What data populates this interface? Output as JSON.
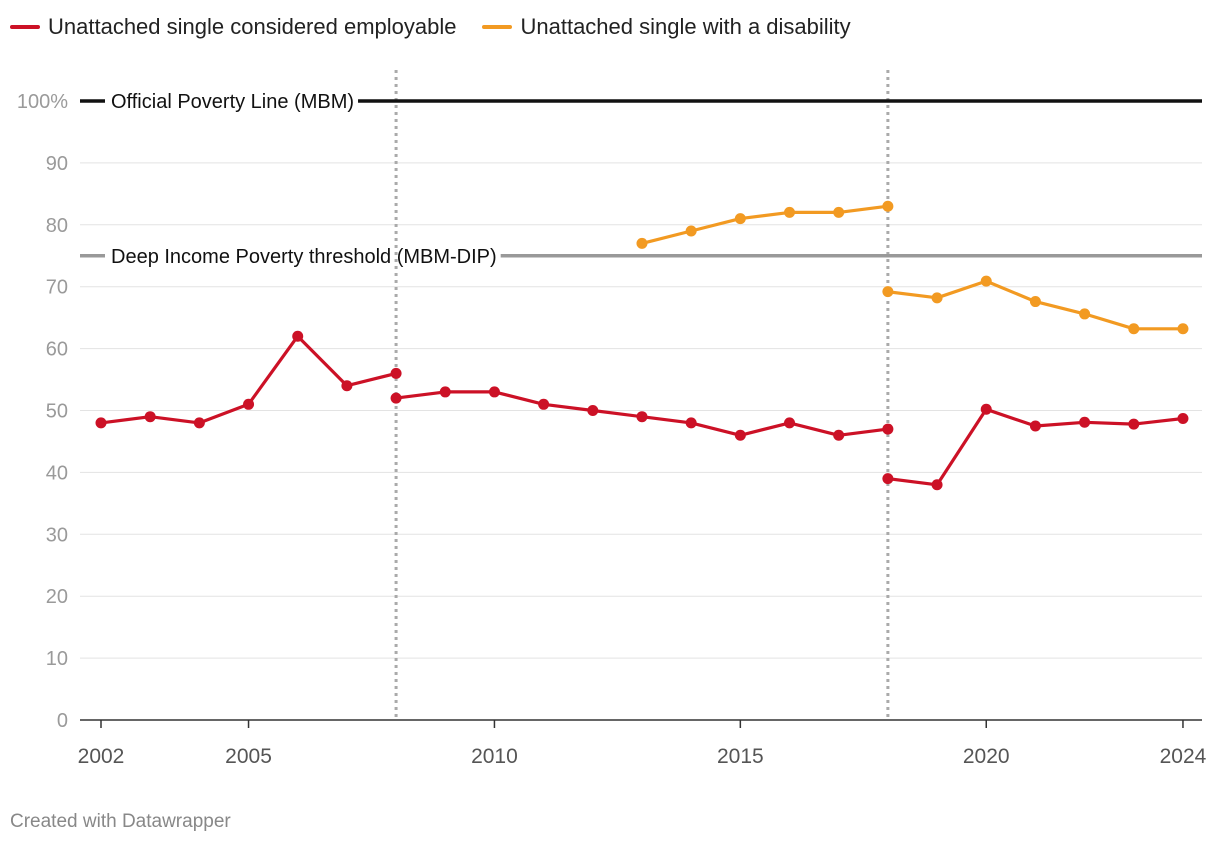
{
  "legend": [
    {
      "name": "Unattached single considered employable",
      "color": "#cc1126"
    },
    {
      "name": "Unattached single with a disability",
      "color": "#f29a22"
    }
  ],
  "footer": "Created with Datawrapper",
  "chart_data": {
    "type": "line",
    "title": "",
    "xlabel": "",
    "ylabel": "",
    "xlim": [
      2001.8,
      2024.4
    ],
    "ylim": [
      0,
      100
    ],
    "y_ticks": [
      0,
      10,
      20,
      30,
      40,
      50,
      60,
      70,
      80,
      90,
      100
    ],
    "y_tick_labels": [
      "0",
      "10",
      "20",
      "30",
      "40",
      "50",
      "60",
      "70",
      "80",
      "90",
      "100%"
    ],
    "x_ticks": [
      2002,
      2005,
      2010,
      2015,
      2020,
      2024
    ],
    "x_tick_labels": [
      "2002",
      "2005",
      "2010",
      "2015",
      "2020",
      "2024"
    ],
    "reference_lines": [
      {
        "label": "Official Poverty Line (MBM)",
        "value": 100,
        "color": "#111111"
      },
      {
        "label": "Deep Income Poverty threshold (MBM-DIP)",
        "value": 75,
        "color": "#999999"
      }
    ],
    "vertical_markers": [
      2008,
      2018
    ],
    "series": [
      {
        "name": "Unattached single considered employable",
        "color": "#cc1126",
        "segments": [
          [
            [
              2002,
              48
            ],
            [
              2003,
              49
            ],
            [
              2004,
              48
            ],
            [
              2005,
              51
            ],
            [
              2006,
              62
            ],
            [
              2007,
              54
            ],
            [
              2008,
              56
            ]
          ],
          [
            [
              2008,
              52
            ],
            [
              2009,
              53
            ],
            [
              2010,
              53
            ],
            [
              2011,
              51
            ],
            [
              2012,
              50
            ],
            [
              2013,
              49
            ],
            [
              2014,
              48
            ],
            [
              2015,
              46
            ],
            [
              2016,
              48
            ],
            [
              2017,
              46
            ],
            [
              2018,
              47
            ]
          ],
          [
            [
              2018,
              39
            ],
            [
              2019,
              38
            ],
            [
              2020,
              50.2
            ],
            [
              2021,
              47.5
            ],
            [
              2022,
              48.1
            ],
            [
              2023,
              47.8
            ],
            [
              2024,
              48.7
            ]
          ]
        ]
      },
      {
        "name": "Unattached single with a disability",
        "color": "#f29a22",
        "segments": [
          [
            [
              2013,
              77
            ],
            [
              2014,
              79
            ],
            [
              2015,
              81
            ],
            [
              2016,
              82
            ],
            [
              2017,
              82
            ],
            [
              2018,
              83
            ]
          ],
          [
            [
              2018,
              69.2
            ],
            [
              2019,
              68.2
            ],
            [
              2020,
              70.9
            ],
            [
              2021,
              67.6
            ],
            [
              2022,
              65.6
            ],
            [
              2023,
              63.2
            ],
            [
              2024,
              63.2
            ]
          ]
        ]
      }
    ]
  }
}
